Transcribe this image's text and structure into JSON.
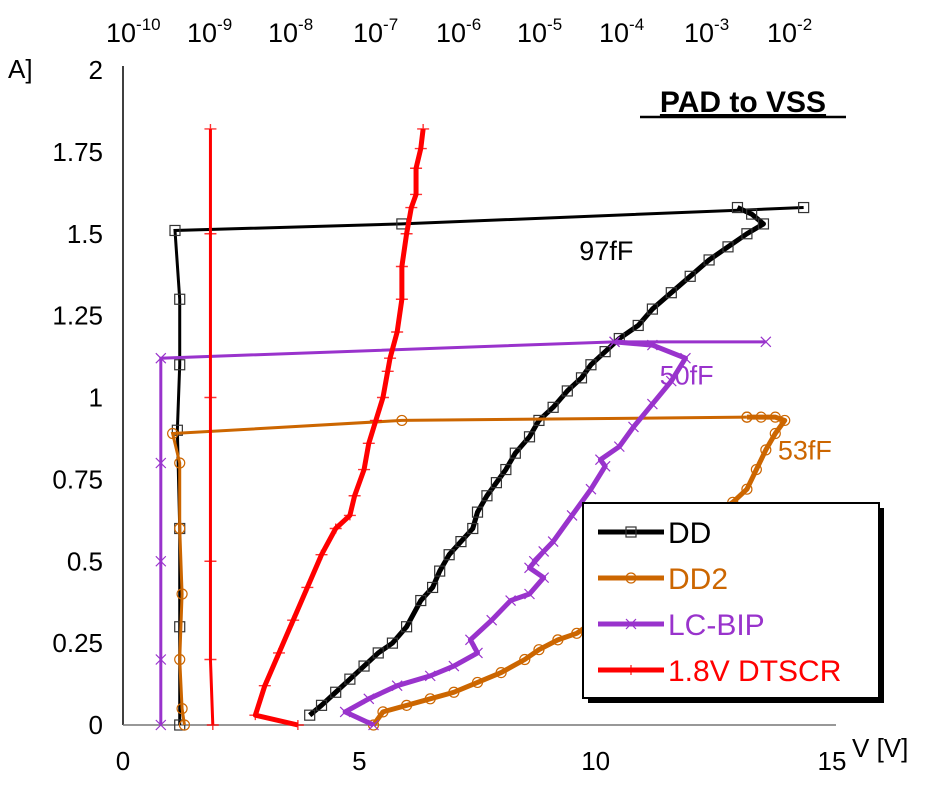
{
  "chart_data": {
    "type": "line",
    "title": "PAD to VSS",
    "xlabel": "V [V]",
    "ylabel": "A]",
    "xlim": [
      0,
      15
    ],
    "ylim": [
      0,
      2
    ],
    "x_ticks": [
      "0",
      "5",
      "10",
      "15"
    ],
    "x_tick_values": [
      0,
      5,
      10,
      15
    ],
    "y_ticks": [
      "0",
      "0.25",
      "0.5",
      "0.75",
      "1",
      "1.25",
      "1.5",
      "1.75",
      "2"
    ],
    "y_tick_values": [
      0,
      0.25,
      0.5,
      0.75,
      1,
      1.25,
      1.5,
      1.75,
      2
    ],
    "x2_label_type": "leakage current (log)",
    "x2_ticks": [
      {
        "base": "10",
        "exp": "-10"
      },
      {
        "base": "10",
        "exp": "-9"
      },
      {
        "base": "10",
        "exp": "-8"
      },
      {
        "base": "10",
        "exp": "-7"
      },
      {
        "base": "10",
        "exp": "-6"
      },
      {
        "base": "10",
        "exp": "-5"
      },
      {
        "base": "10",
        "exp": "-4"
      },
      {
        "base": "10",
        "exp": "-3"
      },
      {
        "base": "10",
        "exp": "-2"
      }
    ],
    "grid": false,
    "legend_position": "bottom-right",
    "annotations": [
      {
        "text": "97fF",
        "series": "DD",
        "x": 10.5,
        "y": 1.42
      },
      {
        "text": "50fF",
        "series": "LC-BIP",
        "x": 12.2,
        "y": 1.04
      },
      {
        "text": "53fF",
        "series": "DD2",
        "x": 14.7,
        "y": 0.81
      }
    ],
    "series": [
      {
        "name": "DD",
        "color": "#000000",
        "marker": "square",
        "tlp_curve": {
          "x": [
            3.95,
            4.2,
            4.5,
            4.8,
            5.1,
            5.4,
            5.7,
            6.0,
            6.3,
            6.55,
            6.7,
            6.9,
            7.15,
            7.4,
            7.5,
            7.7,
            7.9,
            8.1,
            8.3,
            8.6,
            8.8,
            9.1,
            9.4,
            9.7,
            9.9,
            10.2,
            10.5,
            10.9,
            11.2,
            11.6,
            12.0,
            12.4,
            12.8,
            13.2,
            13.55,
            13.3,
            13.0
          ],
          "y": [
            0.03,
            0.06,
            0.1,
            0.14,
            0.18,
            0.22,
            0.25,
            0.3,
            0.38,
            0.42,
            0.47,
            0.52,
            0.56,
            0.6,
            0.65,
            0.7,
            0.74,
            0.78,
            0.83,
            0.88,
            0.93,
            0.97,
            1.02,
            1.06,
            1.1,
            1.14,
            1.18,
            1.22,
            1.27,
            1.32,
            1.37,
            1.42,
            1.46,
            1.5,
            1.53,
            1.56,
            1.58
          ]
        },
        "leakage_curve": {
          "x": [
            14.4,
            5.9,
            1.1,
            1.2,
            1.2,
            1.15,
            1.2,
            1.2,
            1.2
          ],
          "y": [
            1.58,
            1.53,
            1.51,
            1.3,
            1.1,
            0.9,
            0.6,
            0.3,
            0.0
          ]
        }
      },
      {
        "name": "DD2",
        "color": "#CC6600",
        "marker": "circle",
        "tlp_curve": {
          "x": [
            5.3,
            5.5,
            6.0,
            6.5,
            7.0,
            7.5,
            8.0,
            8.5,
            8.8,
            9.2,
            9.6,
            10.1,
            10.7,
            11.3,
            11.9,
            12.4,
            12.9,
            13.2,
            13.4,
            13.6,
            13.8,
            14.0,
            13.8,
            13.5,
            13.2
          ],
          "y": [
            0.0,
            0.04,
            0.06,
            0.08,
            0.1,
            0.13,
            0.16,
            0.2,
            0.23,
            0.26,
            0.28,
            0.33,
            0.4,
            0.48,
            0.56,
            0.63,
            0.68,
            0.72,
            0.78,
            0.84,
            0.89,
            0.93,
            0.94,
            0.94,
            0.94
          ]
        },
        "leakage_curve": {
          "x": [
            13.2,
            5.9,
            1.05,
            1.2,
            1.2,
            1.25,
            1.2,
            1.25,
            1.3
          ],
          "y": [
            0.94,
            0.93,
            0.89,
            0.8,
            0.6,
            0.4,
            0.2,
            0.05,
            0.0
          ]
        }
      },
      {
        "name": "LC-BIP",
        "color": "#9933CC",
        "marker": "x",
        "tlp_curve": {
          "x": [
            5.3,
            4.7,
            5.2,
            5.8,
            6.5,
            7.0,
            7.5,
            7.35,
            7.8,
            8.2,
            8.6,
            8.9,
            8.6,
            8.9,
            8.7,
            9.1,
            9.5,
            9.9,
            10.2,
            10.1,
            10.5,
            10.8,
            11.2,
            11.6,
            11.9,
            11.2,
            10.4
          ],
          "y": [
            0.0,
            0.04,
            0.08,
            0.12,
            0.15,
            0.18,
            0.22,
            0.26,
            0.32,
            0.38,
            0.4,
            0.45,
            0.48,
            0.53,
            0.5,
            0.56,
            0.64,
            0.72,
            0.79,
            0.81,
            0.85,
            0.91,
            0.98,
            1.05,
            1.12,
            1.16,
            1.17
          ]
        },
        "leakage_curve": {
          "x": [
            13.6,
            10.4,
            0.8,
            0.8,
            0.8,
            0.8,
            0.8
          ],
          "y": [
            1.17,
            1.17,
            1.12,
            0.8,
            0.5,
            0.2,
            0.0
          ]
        }
      },
      {
        "name": "1.8V DTSCR",
        "color": "#FF0000",
        "marker": "plus",
        "tlp_curve": {
          "x": [
            3.7,
            2.8,
            3.0,
            3.3,
            3.6,
            3.9,
            4.2,
            4.5,
            4.8,
            4.9,
            5.1,
            5.2,
            5.35,
            5.5,
            5.6,
            5.65,
            5.8,
            5.9,
            5.9,
            6.0,
            6.1,
            6.2,
            6.2,
            6.3,
            6.35
          ],
          "y": [
            0.0,
            0.03,
            0.12,
            0.22,
            0.32,
            0.42,
            0.52,
            0.6,
            0.64,
            0.7,
            0.78,
            0.86,
            0.93,
            1.0,
            1.08,
            1.12,
            1.2,
            1.3,
            1.4,
            1.5,
            1.58,
            1.62,
            1.7,
            1.76,
            1.82
          ]
        },
        "leakage_curve": {
          "x": [
            1.85,
            1.85,
            1.85,
            1.85,
            1.85,
            1.9
          ],
          "y": [
            1.82,
            1.5,
            1.0,
            0.5,
            0.2,
            0.0
          ]
        }
      }
    ]
  }
}
